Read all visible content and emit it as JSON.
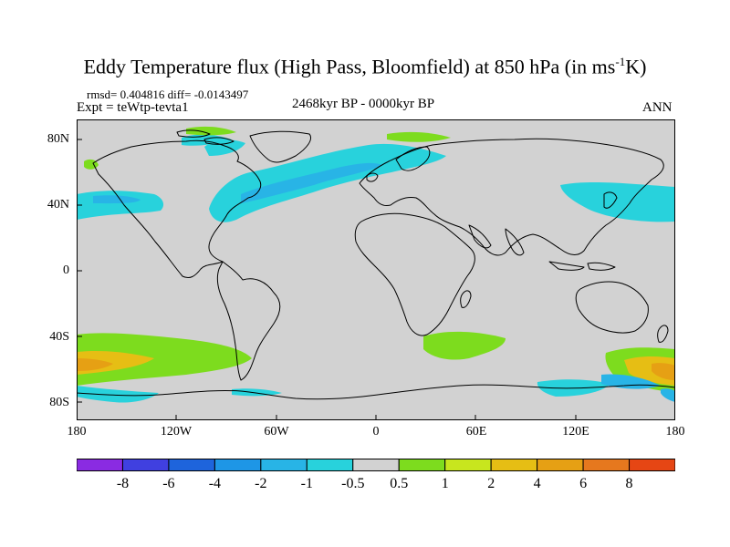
{
  "title": {
    "main": "Eddy Temperature flux (High Pass, Bloomfield) at 850 hPa (in ms",
    "sup": "-1",
    "end": "K)"
  },
  "stats": "rmsd= 0.404816  diff= -0.0143497",
  "expt": "Expt = teWtp-tevta1",
  "period": "2468kyr BP - 0000kyr BP",
  "season": "ANN",
  "lat_labels": [
    "80N",
    "40N",
    "0",
    "40S",
    "80S"
  ],
  "lat_values": [
    80,
    40,
    0,
    -40,
    -80
  ],
  "lon_labels": [
    "180",
    "120W",
    "60W",
    "0",
    "60E",
    "120E",
    "180"
  ],
  "lon_values": [
    -180,
    -120,
    -60,
    0,
    60,
    120,
    180
  ],
  "colorbar": {
    "labels": [
      "-8",
      "-6",
      "-4",
      "-2",
      "-1",
      "-0.5",
      "0.5",
      "1",
      "2",
      "4",
      "6",
      "8"
    ],
    "colors": [
      "#8a2be2",
      "#4040e0",
      "#1e64dc",
      "#1e96e6",
      "#28b4e6",
      "#28d2dc",
      "#d2d2d2",
      "#7ddc1e",
      "#c8e61e",
      "#e6be14",
      "#e6a014",
      "#e6781e",
      "#e64614"
    ]
  },
  "map_colors": {
    "ocean": "#d2d2d2",
    "coast": "#000000"
  }
}
